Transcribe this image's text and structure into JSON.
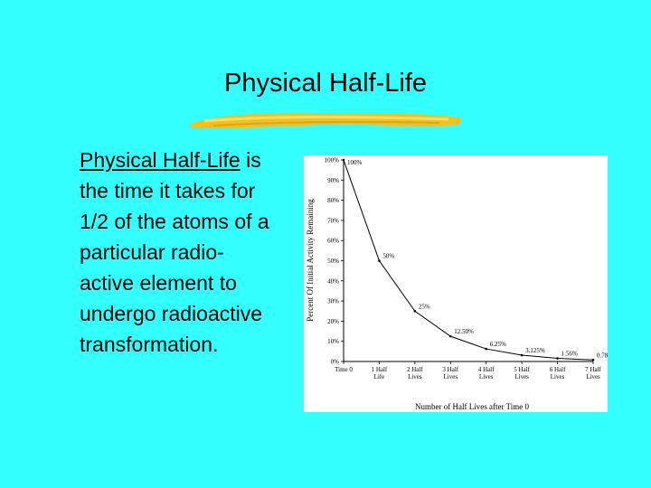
{
  "slide": {
    "title": "Physical Half-Life",
    "body_term": "Physical Half-Life",
    "body_rest": " is the time it takes for 1/2 of the atoms of a particular radio-active element to undergo radioactive transformation."
  },
  "colors": {
    "background": "#33ffff",
    "brush": "#f0c020"
  },
  "chart_data": {
    "type": "line",
    "title": "",
    "xlabel": "Number of Half Lives after Time 0",
    "ylabel": "Percent Of Initial Activity Remaining",
    "x_ticks": [
      "Time 0",
      "1 Half Life",
      "2 Half Lives",
      "3 Half Lives",
      "4 Half Lives",
      "5 Half Lives",
      "6 Half Lives",
      "7 Half Lives"
    ],
    "y_ticks": [
      "0%",
      "10%",
      "20%",
      "30%",
      "40%",
      "50%",
      "60%",
      "70%",
      "80%",
      "90%",
      "100%"
    ],
    "ylim": [
      0,
      100
    ],
    "x": [
      0,
      1,
      2,
      3,
      4,
      5,
      6,
      7
    ],
    "values": [
      100,
      50,
      25,
      12.5,
      6.25,
      3.125,
      1.56,
      0.78
    ],
    "data_labels": [
      "100%",
      "50%",
      "25%",
      "12.50%",
      "6.25%",
      "3.125%",
      "1.56%",
      "0.78%"
    ],
    "grid": false
  }
}
